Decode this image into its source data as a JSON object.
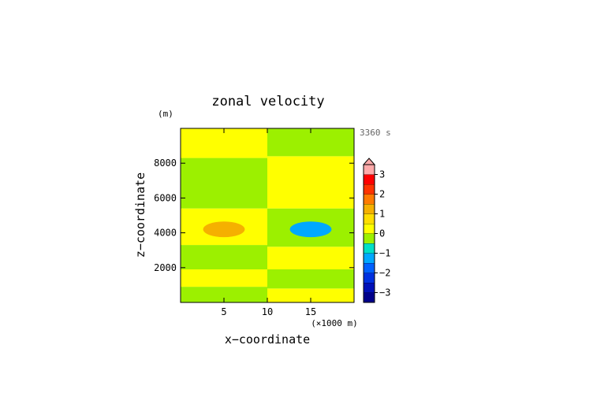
{
  "chart_data": {
    "type": "heatmap",
    "title": "zonal velocity",
    "time_label": "3360 s",
    "xlabel": "x−coordinate",
    "x_unit_label": "(×1000 m)",
    "x_unit_multiplier": 1000,
    "ylabel": "z−coordinate",
    "y_unit_label": "(m)",
    "xlim": [
      0,
      20000
    ],
    "ylim": [
      0,
      10000
    ],
    "x_ticks": [
      5000,
      10000,
      15000
    ],
    "x_tick_labels": [
      "5",
      "10",
      "15"
    ],
    "y_ticks": [
      2000,
      4000,
      6000,
      8000
    ],
    "y_tick_labels": [
      "2000",
      "4000",
      "6000",
      "8000"
    ],
    "field_bands": [
      {
        "x": [
          0,
          10000
        ],
        "z": [
          0,
          900
        ],
        "value": -0.3
      },
      {
        "x": [
          0,
          10000
        ],
        "z": [
          900,
          1900
        ],
        "value": 0.3
      },
      {
        "x": [
          0,
          10000
        ],
        "z": [
          1900,
          3300
        ],
        "value": -0.3
      },
      {
        "x": [
          0,
          10000
        ],
        "z": [
          3300,
          5400
        ],
        "value": 0.3
      },
      {
        "x": [
          0,
          10000
        ],
        "z": [
          5400,
          8300
        ],
        "value": -0.3
      },
      {
        "x": [
          0,
          10000
        ],
        "z": [
          8300,
          10000
        ],
        "value": 0.3
      },
      {
        "x": [
          10000,
          20000
        ],
        "z": [
          0,
          800
        ],
        "value": 0.3
      },
      {
        "x": [
          10000,
          20000
        ],
        "z": [
          800,
          1900
        ],
        "value": -0.3
      },
      {
        "x": [
          10000,
          20000
        ],
        "z": [
          1900,
          3200
        ],
        "value": 0.3
      },
      {
        "x": [
          10000,
          20000
        ],
        "z": [
          3200,
          5400
        ],
        "value": -0.3
      },
      {
        "x": [
          10000,
          20000
        ],
        "z": [
          5400,
          8400
        ],
        "value": 0.3
      },
      {
        "x": [
          10000,
          20000
        ],
        "z": [
          8400,
          10000
        ],
        "value": -0.3
      }
    ],
    "anomalies": [
      {
        "center_x": 5000,
        "center_z": 4200,
        "radius_x": 2400,
        "radius_z": 450,
        "value": 1.2
      },
      {
        "center_x": 15000,
        "center_z": 4200,
        "radius_x": 2400,
        "radius_z": 450,
        "value": -1.2
      }
    ],
    "colorbar": {
      "min": -3.5,
      "max": 3.5,
      "levels": [
        {
          "range": [
            -3.5,
            -3
          ],
          "color": "#00008b"
        },
        {
          "range": [
            -3,
            -2.5
          ],
          "color": "#0010b8"
        },
        {
          "range": [
            -2.5,
            -2
          ],
          "color": "#0030e0"
        },
        {
          "range": [
            -2,
            -1.5
          ],
          "color": "#0060ff"
        },
        {
          "range": [
            -1.5,
            -1
          ],
          "color": "#00a8ff"
        },
        {
          "range": [
            -1,
            -0.5
          ],
          "color": "#00e0c8"
        },
        {
          "range": [
            -0.5,
            0
          ],
          "color": "#9cf000"
        },
        {
          "range": [
            0,
            0.5
          ],
          "color": "#ffff00"
        },
        {
          "range": [
            0.5,
            1
          ],
          "color": "#ffdd00"
        },
        {
          "range": [
            1,
            1.5
          ],
          "color": "#f5b000"
        },
        {
          "range": [
            1.5,
            2
          ],
          "color": "#ff7a00"
        },
        {
          "range": [
            2,
            2.5
          ],
          "color": "#ff3300"
        },
        {
          "range": [
            2.5,
            3
          ],
          "color": "#ff0000"
        },
        {
          "range": [
            3,
            3.5
          ],
          "color": "#ffaaaa"
        }
      ],
      "tick_values": [
        3,
        2,
        1,
        0,
        -1,
        -2,
        -3
      ],
      "tick_labels": [
        "3",
        "2",
        "1",
        "0",
        "−1",
        "−2",
        "−3"
      ],
      "extend": "max"
    }
  }
}
